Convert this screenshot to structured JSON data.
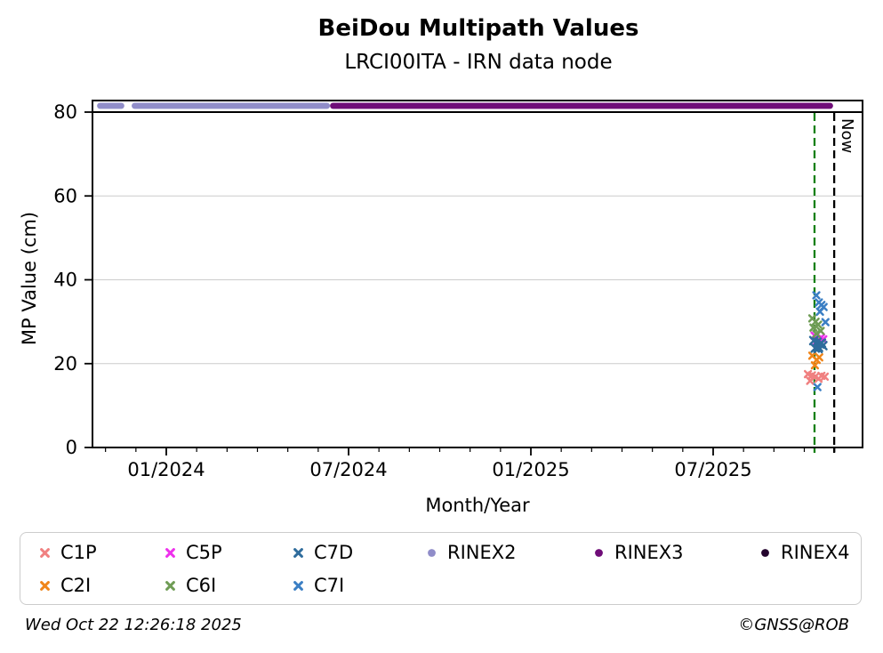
{
  "chart_data": {
    "type": "scatter",
    "title": "BeiDou Multipath Values",
    "subtitle": "LRCI00ITA - IRN data node",
    "x_axis": {
      "label": "Month/Year",
      "lim_decimal_years": [
        2023.798,
        2025.91
      ],
      "major_ticks": [
        {
          "x": 2024.0,
          "label": "01/2024"
        },
        {
          "x": 2024.5,
          "label": "07/2024"
        },
        {
          "x": 2025.0,
          "label": "01/2025"
        },
        {
          "x": 2025.5,
          "label": "07/2025"
        }
      ],
      "minor_ticks": [
        2023.8333,
        2023.9167,
        2024.0833,
        2024.1667,
        2024.25,
        2024.3333,
        2024.4167,
        2024.5833,
        2024.6667,
        2024.75,
        2024.8333,
        2024.9167,
        2025.0833,
        2025.1667,
        2025.25,
        2025.3333,
        2025.4167,
        2025.5833,
        2025.6667,
        2025.75,
        2025.8333
      ]
    },
    "y_axis": {
      "label": "MP Value (cm)",
      "lim": [
        0,
        80
      ],
      "ticks": [
        0,
        20,
        40,
        60,
        80
      ]
    },
    "grid_y_values": [
      20,
      40,
      60
    ],
    "cap_line_y": 80,
    "event_line": {
      "x": 2025.778,
      "color": "#128012",
      "style": "dashed"
    },
    "now_marker": {
      "x": 2025.832,
      "label": "Now",
      "color": "#000000",
      "style": "dashed"
    },
    "rinex_bands": {
      "y": 81.5,
      "segments": [
        {
          "name": "RINEX2",
          "color": "#908DC9",
          "start": 2023.81,
          "end": 2023.885
        },
        {
          "name": "RINEX2",
          "color": "#908DC9",
          "start": 2023.905,
          "end": 2024.449
        },
        {
          "name": "RINEX3",
          "color": "#6F0D78",
          "start": 2024.449,
          "end": 2025.829
        }
      ]
    },
    "series": [
      {
        "name": "C1P",
        "color": "#F08080",
        "marker": "x",
        "points": [
          [
            2025.76,
            17.5
          ],
          [
            2025.771,
            17.2
          ],
          [
            2025.78,
            16.9
          ],
          [
            2025.789,
            16.4
          ],
          [
            2025.797,
            17.1
          ],
          [
            2025.806,
            16.9
          ],
          [
            2025.766,
            15.9
          ]
        ]
      },
      {
        "name": "C2I",
        "color": "#F08519",
        "marker": "x",
        "points": [
          [
            2025.772,
            21.9
          ],
          [
            2025.791,
            21.5
          ],
          [
            2025.784,
            20.9
          ],
          [
            2025.779,
            19.6
          ]
        ]
      },
      {
        "name": "C5P",
        "color": "#EE30EC",
        "marker": "x",
        "points": [
          [
            2025.778,
            26.7
          ],
          [
            2025.796,
            26.2
          ],
          [
            2025.802,
            25.8
          ],
          [
            2025.784,
            25.3
          ]
        ]
      },
      {
        "name": "C6I",
        "color": "#6F9C55",
        "marker": "x",
        "points": [
          [
            2025.772,
            30.8
          ],
          [
            2025.781,
            30.0
          ],
          [
            2025.788,
            29.3
          ],
          [
            2025.775,
            28.6
          ],
          [
            2025.795,
            27.8
          ],
          [
            2025.783,
            27.1
          ]
        ]
      },
      {
        "name": "C7D",
        "color": "#2F6C9C",
        "marker": "x",
        "points": [
          [
            2025.776,
            25.5
          ],
          [
            2025.785,
            25.1
          ],
          [
            2025.793,
            24.7
          ],
          [
            2025.801,
            24.3
          ],
          [
            2025.789,
            23.9
          ],
          [
            2025.78,
            23.7
          ],
          [
            2025.797,
            24.9
          ],
          [
            2025.788,
            23.6
          ]
        ]
      },
      {
        "name": "C7I",
        "color": "#3B7FC4",
        "marker": "x",
        "points": [
          [
            2025.783,
            36.3
          ],
          [
            2025.79,
            34.6
          ],
          [
            2025.797,
            34.0
          ],
          [
            2025.803,
            33.5
          ],
          [
            2025.793,
            32.4
          ],
          [
            2025.808,
            29.9
          ],
          [
            2025.786,
            14.4
          ]
        ]
      }
    ]
  },
  "legend": {
    "items": [
      {
        "label": "C1P",
        "color": "#F08080",
        "marker": "x",
        "row": 0,
        "col": 0
      },
      {
        "label": "C5P",
        "color": "#EE30EC",
        "marker": "x",
        "row": 0,
        "col": 1
      },
      {
        "label": "C7D",
        "color": "#2F6C9C",
        "marker": "x",
        "row": 0,
        "col": 2
      },
      {
        "label": "RINEX2",
        "color": "#908DC9",
        "marker": "dot",
        "row": 0,
        "col": 3
      },
      {
        "label": "RINEX3",
        "color": "#6F0D78",
        "marker": "dot",
        "row": 0,
        "col": 4
      },
      {
        "label": "RINEX4",
        "color": "#24042E",
        "marker": "dot",
        "row": 0,
        "col": 5
      },
      {
        "label": "C2I",
        "color": "#F08519",
        "marker": "x",
        "row": 1,
        "col": 0
      },
      {
        "label": "C6I",
        "color": "#6F9C55",
        "marker": "x",
        "row": 1,
        "col": 1
      },
      {
        "label": "C7I",
        "color": "#3B7FC4",
        "marker": "x",
        "row": 1,
        "col": 2
      }
    ]
  },
  "footer": {
    "timestamp": "Wed Oct 22 12:26:18 2025",
    "copyright": "©GNSS@ROB"
  }
}
